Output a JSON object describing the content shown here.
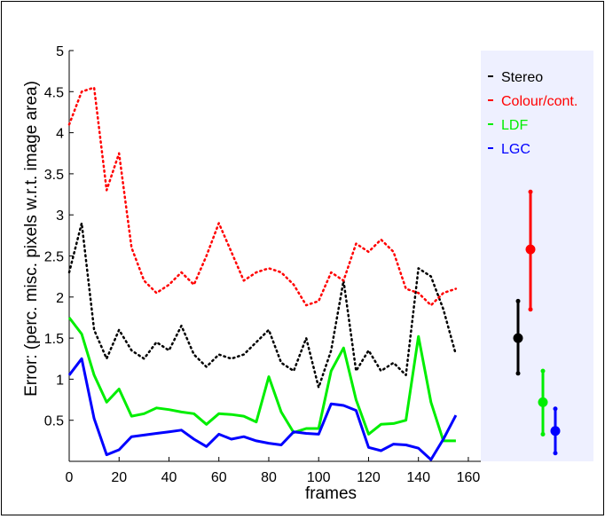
{
  "chart_data": {
    "type": "line",
    "xlabel": "frames",
    "ylabel": "Error: (perc. misc. pixels w.r.t. image area)",
    "xlim": [
      0,
      165
    ],
    "ylim": [
      0,
      5
    ],
    "xticks": [
      "0",
      "20",
      "40",
      "60",
      "80",
      "100",
      "120",
      "140",
      "160"
    ],
    "yticks": [
      "0.5",
      "1",
      "1.5",
      "2",
      "2.5",
      "3",
      "3.5",
      "4",
      "4.5",
      "5"
    ],
    "legend_position": "right",
    "series": [
      {
        "name": "Stereo",
        "color": "#000000",
        "style": "dotted",
        "x": [
          0,
          5,
          10,
          15,
          20,
          25,
          30,
          35,
          40,
          45,
          50,
          55,
          60,
          65,
          70,
          75,
          80,
          85,
          90,
          95,
          100,
          105,
          110,
          115,
          120,
          125,
          130,
          135,
          140,
          145,
          150,
          155
        ],
        "values": [
          2.3,
          2.9,
          1.6,
          1.25,
          1.6,
          1.35,
          1.25,
          1.45,
          1.35,
          1.65,
          1.3,
          1.15,
          1.3,
          1.25,
          1.3,
          1.45,
          1.6,
          1.2,
          1.1,
          1.5,
          0.9,
          1.35,
          2.2,
          1.1,
          1.35,
          1.1,
          1.2,
          1.05,
          2.35,
          2.25,
          1.85,
          1.3
        ]
      },
      {
        "name": "Colour/cont.",
        "color": "#ff0000",
        "style": "dotted",
        "x": [
          0,
          5,
          10,
          15,
          20,
          25,
          30,
          35,
          40,
          45,
          50,
          55,
          60,
          65,
          70,
          75,
          80,
          85,
          90,
          95,
          100,
          105,
          110,
          115,
          120,
          125,
          130,
          135,
          140,
          145,
          150,
          155
        ],
        "values": [
          4.1,
          4.5,
          4.55,
          3.3,
          3.75,
          2.6,
          2.2,
          2.05,
          2.15,
          2.3,
          2.15,
          2.5,
          2.9,
          2.55,
          2.2,
          2.3,
          2.35,
          2.3,
          2.15,
          1.9,
          1.95,
          2.3,
          2.2,
          2.65,
          2.55,
          2.7,
          2.55,
          2.1,
          2.05,
          1.9,
          2.05,
          2.1
        ]
      },
      {
        "name": "LDF",
        "color": "#00ee00",
        "style": "solid",
        "x": [
          0,
          5,
          10,
          15,
          20,
          25,
          30,
          35,
          40,
          45,
          50,
          55,
          60,
          65,
          70,
          75,
          80,
          85,
          90,
          95,
          100,
          105,
          110,
          115,
          120,
          125,
          130,
          135,
          140,
          145,
          150,
          155
        ],
        "values": [
          1.75,
          1.55,
          1.05,
          0.72,
          0.88,
          0.55,
          0.58,
          0.65,
          0.63,
          0.6,
          0.58,
          0.45,
          0.58,
          0.57,
          0.55,
          0.48,
          1.03,
          0.6,
          0.35,
          0.4,
          0.4,
          1.1,
          1.38,
          0.75,
          0.33,
          0.45,
          0.46,
          0.5,
          1.52,
          0.72,
          0.25,
          0.25
        ]
      },
      {
        "name": "LGC",
        "color": "#0000ff",
        "style": "solid",
        "x": [
          0,
          5,
          10,
          15,
          20,
          25,
          30,
          35,
          40,
          45,
          50,
          55,
          60,
          65,
          70,
          75,
          80,
          85,
          90,
          95,
          100,
          105,
          110,
          115,
          120,
          125,
          130,
          135,
          140,
          145,
          150,
          155
        ],
        "values": [
          1.05,
          1.25,
          0.52,
          0.08,
          0.14,
          0.3,
          0.32,
          0.34,
          0.36,
          0.38,
          0.27,
          0.18,
          0.33,
          0.27,
          0.3,
          0.25,
          0.22,
          0.2,
          0.36,
          0.34,
          0.33,
          0.7,
          0.68,
          0.62,
          0.17,
          0.13,
          0.21,
          0.2,
          0.16,
          0.02,
          0.27,
          0.56
        ]
      }
    ],
    "error_bars": [
      {
        "series": "Stereo",
        "mean": 1.5,
        "low": 1.07,
        "high": 1.95,
        "color": "#000000"
      },
      {
        "series": "Colour/cont.",
        "mean": 2.58,
        "low": 1.85,
        "high": 3.28,
        "color": "#ff0000"
      },
      {
        "series": "LDF",
        "mean": 0.72,
        "low": 0.33,
        "high": 1.1,
        "color": "#00ee00"
      },
      {
        "series": "LGC",
        "mean": 0.37,
        "low": 0.1,
        "high": 0.64,
        "color": "#0000ff"
      }
    ]
  }
}
